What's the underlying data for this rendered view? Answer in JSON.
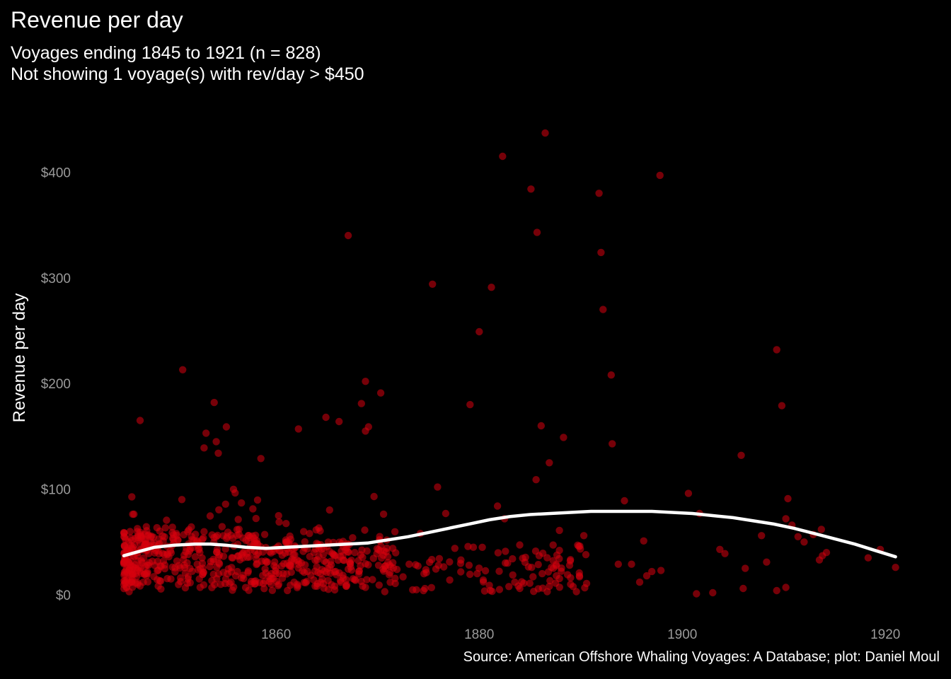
{
  "chart_data": {
    "type": "scatter",
    "title": "Revenue per day",
    "subtitle": [
      "Voyages ending 1845 to 1921 (n = 828)",
      "Not showing 1 voyage(s) with rev/day > $450"
    ],
    "ylabel": "Revenue per day",
    "xlabel": "",
    "caption": "Source: American Offshore Whaling Voyages: A Database; plot: Daniel Moul",
    "xlim": [
      1845,
      1921
    ],
    "ylim": [
      0,
      450
    ],
    "x_ticks": [
      1860,
      1880,
      1900,
      1920
    ],
    "y_ticks": [
      0,
      100,
      200,
      300,
      400
    ],
    "y_tick_labels": [
      "$0",
      "$100",
      "$200",
      "$300",
      "$400"
    ],
    "grid": false,
    "colors": {
      "background": "#000000",
      "points": "#d7000f",
      "smooth_line": "#ffffff"
    },
    "series": [
      {
        "points": [
          [
            1846.6,
            165
          ],
          [
            1850.8,
            213
          ],
          [
            1853.9,
            182
          ],
          [
            1855.1,
            159
          ],
          [
            1853.1,
            153
          ],
          [
            1854.1,
            145
          ],
          [
            1852.9,
            139
          ],
          [
            1854.3,
            134
          ],
          [
            1858.5,
            129
          ],
          [
            1862.2,
            157
          ],
          [
            1864.9,
            168
          ],
          [
            1866.2,
            164
          ],
          [
            1867.1,
            340
          ],
          [
            1868.8,
            202
          ],
          [
            1868.4,
            181
          ],
          [
            1869.1,
            159
          ],
          [
            1868.8,
            155
          ],
          [
            1870.3,
            191
          ],
          [
            1875.4,
            294
          ],
          [
            1875.9,
            102
          ],
          [
            1876.7,
            77
          ],
          [
            1879.1,
            180
          ],
          [
            1880.0,
            249
          ],
          [
            1881.2,
            291
          ],
          [
            1882.3,
            415
          ],
          [
            1881.8,
            84
          ],
          [
            1882.5,
            72
          ],
          [
            1885.1,
            384
          ],
          [
            1885.7,
            343
          ],
          [
            1886.1,
            160
          ],
          [
            1885.6,
            109
          ],
          [
            1886.9,
            125
          ],
          [
            1886.5,
            437
          ],
          [
            1887.9,
            61
          ],
          [
            1888.3,
            149
          ],
          [
            1889.7,
            47
          ],
          [
            1890.3,
            56
          ],
          [
            1891.8,
            380
          ],
          [
            1892.0,
            324
          ],
          [
            1892.2,
            270
          ],
          [
            1893.0,
            208
          ],
          [
            1893.1,
            143
          ],
          [
            1894.3,
            89
          ],
          [
            1895.0,
            29
          ],
          [
            1896.2,
            51
          ],
          [
            1897.8,
            397
          ],
          [
            1900.6,
            96
          ],
          [
            1901.7,
            77
          ],
          [
            1903.7,
            43
          ],
          [
            1904.2,
            39
          ],
          [
            1905.8,
            132
          ],
          [
            1906.2,
            25
          ],
          [
            1907.8,
            56
          ],
          [
            1908.3,
            31
          ],
          [
            1909.3,
            232
          ],
          [
            1909.8,
            179
          ],
          [
            1910.4,
            91
          ],
          [
            1910.2,
            72
          ],
          [
            1910.8,
            66
          ],
          [
            1911.4,
            55
          ],
          [
            1912.0,
            50
          ],
          [
            1912.9,
            57
          ],
          [
            1913.7,
            62
          ],
          [
            1913.5,
            33
          ],
          [
            1913.8,
            37
          ],
          [
            1914.2,
            40
          ],
          [
            1918.3,
            35
          ],
          [
            1919.5,
            43
          ],
          [
            1921.0,
            26
          ],
          [
            1901.4,
            1
          ],
          [
            1903.0,
            2
          ],
          [
            1906.0,
            6
          ],
          [
            1909.3,
            4
          ],
          [
            1910.2,
            7
          ],
          [
            1895.8,
            12
          ],
          [
            1896.5,
            18
          ],
          [
            1897.0,
            22
          ],
          [
            1897.9,
            23
          ],
          [
            1893.7,
            29
          ],
          [
            1889.0,
            10
          ],
          [
            1888.7,
            19
          ],
          [
            1887.6,
            18
          ],
          [
            1886.9,
            8
          ],
          [
            1886.2,
            20
          ],
          [
            1885.9,
            37
          ],
          [
            1884.0,
            6
          ],
          [
            1883.5,
            12
          ],
          [
            1882.0,
            5
          ],
          [
            1881.0,
            9
          ],
          [
            1880.4,
            14
          ],
          [
            1879.8,
            20
          ],
          [
            1879.0,
            28
          ],
          [
            1878.2,
            33
          ],
          [
            1877.6,
            44
          ],
          [
            1877.1,
            14
          ],
          [
            1876.0,
            28
          ],
          [
            1874.8,
            21
          ],
          [
            1874.2,
            58
          ],
          [
            1873.1,
            29
          ],
          [
            1872.5,
            17
          ],
          [
            1871.9,
            24
          ],
          [
            1871.0,
            36
          ],
          [
            1870.7,
            3
          ],
          [
            1870.2,
            51
          ],
          [
            1880.3,
            45
          ],
          [
            1882.8,
            30
          ],
          [
            1884.4,
            11
          ],
          [
            1886.7,
            3
          ],
          [
            1888.9,
            28
          ]
        ]
      }
    ],
    "smooth_line": [
      [
        1845.0,
        37
      ],
      [
        1846.5,
        41
      ],
      [
        1848.0,
        45
      ],
      [
        1850.0,
        47
      ],
      [
        1852.0,
        48
      ],
      [
        1853.5,
        48
      ],
      [
        1855.0,
        47
      ],
      [
        1857.0,
        45
      ],
      [
        1859.0,
        44
      ],
      [
        1861.0,
        45
      ],
      [
        1863.0,
        46
      ],
      [
        1865.0,
        47
      ],
      [
        1867.0,
        48
      ],
      [
        1869.0,
        49
      ],
      [
        1871.0,
        52
      ],
      [
        1873.0,
        55
      ],
      [
        1875.0,
        59
      ],
      [
        1877.0,
        63
      ],
      [
        1879.0,
        67
      ],
      [
        1881.0,
        71
      ],
      [
        1883.0,
        74
      ],
      [
        1885.0,
        76
      ],
      [
        1887.0,
        77
      ],
      [
        1889.0,
        78
      ],
      [
        1891.0,
        79
      ],
      [
        1893.0,
        79
      ],
      [
        1895.0,
        79
      ],
      [
        1897.0,
        79
      ],
      [
        1899.0,
        78
      ],
      [
        1901.0,
        77
      ],
      [
        1903.0,
        75
      ],
      [
        1905.0,
        73
      ],
      [
        1907.0,
        70
      ],
      [
        1909.0,
        67
      ],
      [
        1911.0,
        63
      ],
      [
        1913.0,
        58
      ],
      [
        1915.0,
        53
      ],
      [
        1917.0,
        48
      ],
      [
        1919.0,
        42
      ],
      [
        1921.0,
        36
      ]
    ]
  }
}
